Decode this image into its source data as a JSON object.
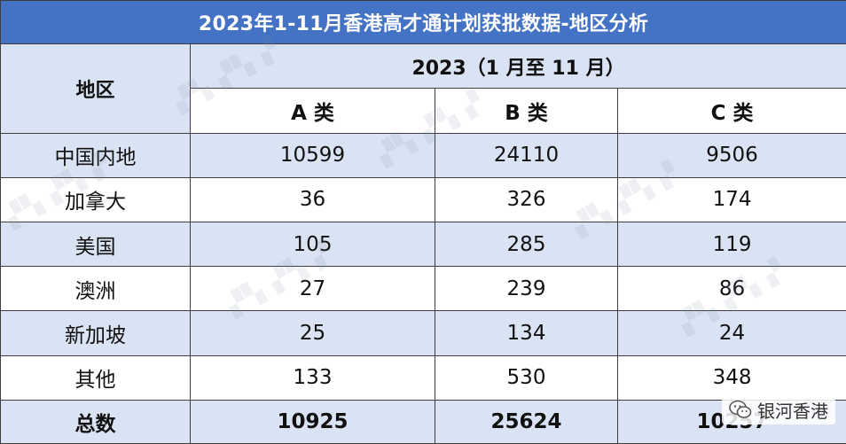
{
  "title": "2023年1-11月香港高才通计划获批数据-地区分析",
  "header": {
    "region_label": "地区",
    "period_label": "2023（1 月至 11 月）",
    "categories": [
      "A 类",
      "B 类",
      "C 类"
    ]
  },
  "rows": [
    {
      "region": "中国内地",
      "a": "10599",
      "b": "24110",
      "c": "9506"
    },
    {
      "region": "加拿大",
      "a": "36",
      "b": "326",
      "c": "174"
    },
    {
      "region": "美国",
      "a": "105",
      "b": "285",
      "c": "119"
    },
    {
      "region": "澳洲",
      "a": "27",
      "b": "239",
      "c": "86"
    },
    {
      "region": "新加坡",
      "a": "25",
      "b": "134",
      "c": "24"
    },
    {
      "region": "其他",
      "a": "133",
      "b": "530",
      "c": "348"
    }
  ],
  "total": {
    "label": "总数",
    "a": "10925",
    "b": "25624",
    "c": "10257"
  },
  "badge": {
    "icon": "wechat-icon",
    "text": "银河香港"
  },
  "colors": {
    "title_bg": "#4472c4",
    "header_bg": "#dae3f3",
    "stripe_bg": "#dae3f3"
  }
}
